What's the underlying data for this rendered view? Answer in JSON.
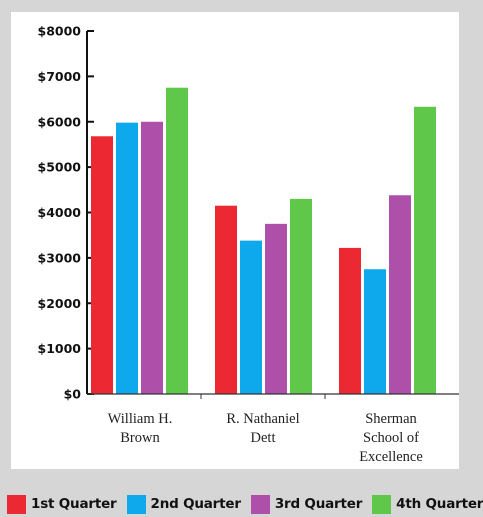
{
  "chart_data": {
    "type": "bar",
    "categories": [
      [
        "William H.",
        "Brown"
      ],
      [
        "R. Nathaniel",
        "Dett"
      ],
      [
        "Sherman",
        "School of",
        "Excellence"
      ]
    ],
    "series": [
      {
        "name": "1st Quarter",
        "color": "#ec2833",
        "values": [
          5680,
          4150,
          3220
        ]
      },
      {
        "name": "2nd Quarter",
        "color": "#0ea9ec",
        "values": [
          5980,
          3380,
          2750
        ]
      },
      {
        "name": "3rd Quarter",
        "color": "#ae4fa9",
        "values": [
          6000,
          3750,
          4380
        ]
      },
      {
        "name": "4th Quarter",
        "color": "#5fc74a",
        "values": [
          6750,
          4300,
          6330
        ]
      }
    ],
    "yticks": [
      0,
      1000,
      2000,
      3000,
      4000,
      5000,
      6000,
      7000,
      8000
    ],
    "ytick_labels": [
      "$0",
      "$1000",
      "$2000",
      "$3000",
      "$4000",
      "$5000",
      "$6000",
      "$7000",
      "$8000"
    ],
    "ylim": [
      0,
      8000
    ],
    "grid": false,
    "legend_position": "bottom"
  }
}
